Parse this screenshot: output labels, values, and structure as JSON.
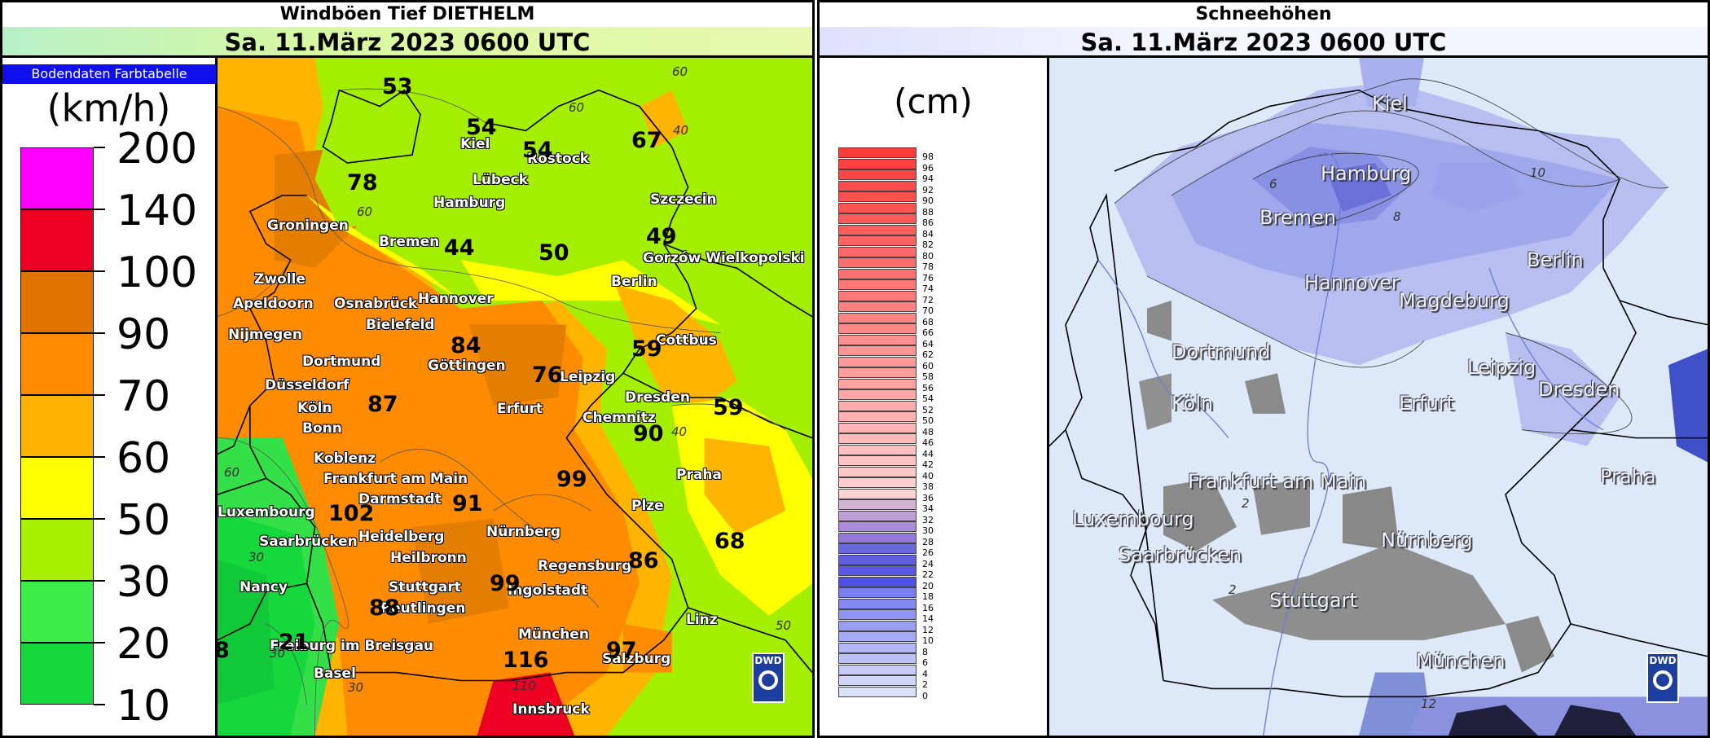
{
  "left": {
    "title": "Windböen Tief DIETHELM",
    "date": "Sa. 11.März 2023 0600 UTC",
    "legend_header": "Bodendaten Farbtabelle",
    "unit": "(km/h)",
    "scale": [
      {
        "label": "200",
        "color": "#ff00ff"
      },
      {
        "label": "140",
        "color": "#ee0022"
      },
      {
        "label": "100",
        "color": "#e07400"
      },
      {
        "label": "90",
        "color": "#ff8c00"
      },
      {
        "label": "70",
        "color": "#ffb200"
      },
      {
        "label": "60",
        "color": "#ffff00"
      },
      {
        "label": "50",
        "color": "#a8f000"
      },
      {
        "label": "30",
        "color": "#3cec48"
      },
      {
        "label": "20",
        "color": "#14d83c"
      },
      {
        "label": "10",
        "color": ""
      }
    ],
    "cities": [
      "Kiel",
      "Rostock",
      "Lübeck",
      "Hamburg",
      "Szczecin",
      "Groningen",
      "Bremen",
      "Gorzów Wielkopolski",
      "Berlin",
      "Zwolle",
      "Apeldoorn",
      "Osnabrück",
      "Hannover",
      "Bielefeld",
      "Nijmegen",
      "Cottbus",
      "Dortmund",
      "Göttingen",
      "Leipzig",
      "Dresden",
      "Düsseldorf",
      "Köln",
      "Erfurt",
      "Chemnitz",
      "Bonn",
      "Koblenz",
      "Praha",
      "Frankfurt am Main",
      "Darmstadt",
      "Plze",
      "Luxembourg",
      "Saarbrücken",
      "Heidelberg",
      "Nürnberg",
      "Heilbronn",
      "Regensburg",
      "Nancy",
      "Stuttgart",
      "Reutlingen",
      "Ingolstadt",
      "München",
      "Salzburg",
      "Linz",
      "Freiburg im Breisgau",
      "Basel",
      "Innsbruck"
    ],
    "gusts": [
      "53",
      "54",
      "54",
      "67",
      "78",
      "44",
      "50",
      "49",
      "84",
      "76",
      "59",
      "87",
      "59",
      "90",
      "99",
      "102",
      "91",
      "68",
      "86",
      "99",
      "88",
      "21",
      "97",
      "116",
      "8"
    ],
    "isolines": [
      "60",
      "60",
      "40",
      "60",
      "40",
      "60",
      "30",
      "50",
      "30",
      "30",
      "110"
    ],
    "logo": "DWD"
  },
  "right": {
    "title": "Schneehöhen",
    "date": "Sa. 11.März 2023 0600 UTC",
    "unit": "(cm)",
    "scale_labels": [
      "98",
      "96",
      "94",
      "92",
      "90",
      "88",
      "86",
      "84",
      "82",
      "80",
      "78",
      "76",
      "74",
      "72",
      "70",
      "68",
      "66",
      "64",
      "62",
      "60",
      "58",
      "56",
      "54",
      "52",
      "50",
      "48",
      "46",
      "44",
      "42",
      "40",
      "38",
      "36",
      "34",
      "32",
      "30",
      "28",
      "26",
      "24",
      "22",
      "20",
      "18",
      "16",
      "14",
      "12",
      "10",
      "8",
      "6",
      "4",
      "2",
      "0"
    ],
    "cities": [
      "Kiel",
      "Hamburg",
      "Bremen",
      "Berlin",
      "Hannover",
      "Magdeburg",
      "Dortmund",
      "Leipzig",
      "Dresden",
      "Köln",
      "Erfurt",
      "Praha",
      "Frankfurt am Main",
      "Luxembourg",
      "Nürnberg",
      "Saarbrücken",
      "Stuttgart",
      "München"
    ],
    "contour_labels": [
      "10",
      "6",
      "8",
      "2",
      "2",
      "12"
    ],
    "logo": "DWD"
  }
}
